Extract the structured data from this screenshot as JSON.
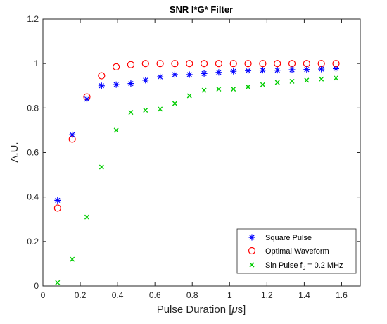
{
  "chart_data": {
    "type": "scatter",
    "title": "SNR I*G* Filter",
    "xlabel_prefix": "Pulse Duration [",
    "xlabel_mu": "μ",
    "xlabel_suffix": "s]",
    "ylabel": "A.U.",
    "xlim": [
      0,
      1.7
    ],
    "ylim": [
      0,
      1.2
    ],
    "xticks": [
      0,
      0.2,
      0.4,
      0.6,
      0.8,
      1,
      1.2,
      1.4,
      1.6
    ],
    "xtick_labels": [
      "0",
      "0.2",
      "0.4",
      "0.6",
      "0.8",
      "1",
      "1.2",
      "1.4",
      "1.6"
    ],
    "yticks": [
      0,
      0.2,
      0.4,
      0.6,
      0.8,
      1,
      1.2
    ],
    "ytick_labels": [
      "0",
      "0.2",
      "0.4",
      "0.6",
      "0.8",
      "1",
      "1.2"
    ],
    "grid": false,
    "legend_position": "bottom-right",
    "x": [
      0.0785,
      0.157,
      0.2355,
      0.314,
      0.3925,
      0.471,
      0.5495,
      0.628,
      0.7065,
      0.785,
      0.8635,
      0.942,
      1.0205,
      1.099,
      1.1775,
      1.256,
      1.3345,
      1.413,
      1.4915,
      1.57
    ],
    "series": [
      {
        "name": "Square Pulse",
        "marker": "asterisk",
        "color": "#0000ff",
        "values": [
          0.385,
          0.68,
          0.84,
          0.9,
          0.905,
          0.91,
          0.925,
          0.94,
          0.95,
          0.95,
          0.955,
          0.96,
          0.965,
          0.968,
          0.97,
          0.97,
          0.972,
          0.973,
          0.975,
          0.977
        ]
      },
      {
        "name": "Optimal Waveform",
        "marker": "circle",
        "color": "#ff0000",
        "values": [
          0.35,
          0.66,
          0.85,
          0.945,
          0.985,
          0.995,
          1.0,
          1.0,
          1.0,
          1.0,
          1.0,
          1.0,
          1.0,
          1.0,
          1.0,
          1.0,
          1.0,
          1.0,
          1.0,
          1.0
        ]
      },
      {
        "name_prefix": "Sin Pulse f",
        "name_sub": "0",
        "name_suffix": " = 0.2 MHz",
        "marker": "x",
        "color": "#00cc00",
        "values": [
          0.015,
          0.12,
          0.31,
          0.535,
          0.7,
          0.78,
          0.79,
          0.795,
          0.82,
          0.855,
          0.88,
          0.885,
          0.885,
          0.895,
          0.905,
          0.915,
          0.92,
          0.925,
          0.93,
          0.935
        ]
      }
    ]
  }
}
